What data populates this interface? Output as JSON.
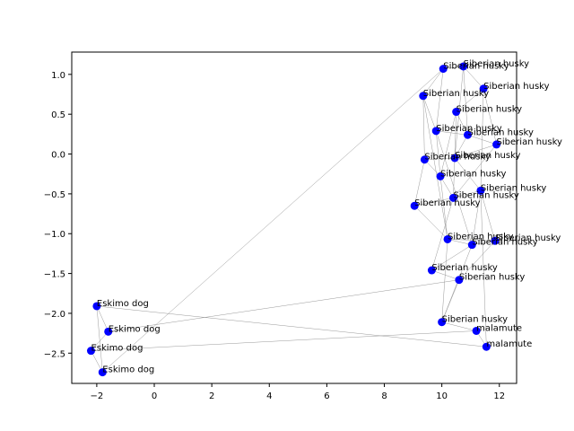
{
  "chart_data": {
    "type": "scatter",
    "title": "",
    "xlabel": "",
    "ylabel": "",
    "xlim": [
      -2.87,
      12.6
    ],
    "ylim": [
      -2.88,
      1.28
    ],
    "xticks": [
      -2,
      0,
      2,
      4,
      6,
      8,
      10,
      12
    ],
    "yticks": [
      -2.5,
      -2.0,
      -1.5,
      -1.0,
      -0.5,
      0.0,
      0.5,
      1.0
    ],
    "xtick_labels": [
      "−2",
      "0",
      "2",
      "4",
      "6",
      "8",
      "10",
      "12"
    ],
    "ytick_labels": [
      "−2.5",
      "−2.0",
      "−1.5",
      "−1.0",
      "−0.5",
      "0.0",
      "0.5",
      "1.0"
    ],
    "grid": false,
    "point_color": "#0000ff",
    "edge_color": "#999999",
    "points": [
      {
        "x": 10.75,
        "y": 1.1,
        "label": "Siberian husky"
      },
      {
        "x": 10.05,
        "y": 1.07,
        "label": "Siberian husky"
      },
      {
        "x": 11.45,
        "y": 0.82,
        "label": "Siberian husky"
      },
      {
        "x": 9.35,
        "y": 0.73,
        "label": "Siberian husky"
      },
      {
        "x": 10.5,
        "y": 0.53,
        "label": "Siberian husky"
      },
      {
        "x": 9.8,
        "y": 0.29,
        "label": "Siberian husky"
      },
      {
        "x": 10.9,
        "y": 0.24,
        "label": "Siberian husky"
      },
      {
        "x": 11.9,
        "y": 0.12,
        "label": "Siberian husky"
      },
      {
        "x": 10.45,
        "y": -0.05,
        "label": "Siberian husky"
      },
      {
        "x": 9.4,
        "y": -0.07,
        "label": "Siberian husky"
      },
      {
        "x": 9.95,
        "y": -0.28,
        "label": "Siberian husky"
      },
      {
        "x": 11.35,
        "y": -0.46,
        "label": "Siberian husky"
      },
      {
        "x": 10.4,
        "y": -0.55,
        "label": "Siberian husky"
      },
      {
        "x": 9.05,
        "y": -0.65,
        "label": "Siberian husky"
      },
      {
        "x": 10.2,
        "y": -1.07,
        "label": "Siberian husky"
      },
      {
        "x": 11.85,
        "y": -1.09,
        "label": "Siberian husky"
      },
      {
        "x": 11.05,
        "y": -1.14,
        "label": "Siberian husky"
      },
      {
        "x": 9.65,
        "y": -1.46,
        "label": "Siberian husky"
      },
      {
        "x": 10.6,
        "y": -1.58,
        "label": "Siberian husky"
      },
      {
        "x": 10.0,
        "y": -2.11,
        "label": "Siberian husky"
      },
      {
        "x": 11.2,
        "y": -2.22,
        "label": "malamute"
      },
      {
        "x": 11.55,
        "y": -2.42,
        "label": "malamute"
      },
      {
        "x": -2.0,
        "y": -1.91,
        "label": "Eskimo dog"
      },
      {
        "x": -1.6,
        "y": -2.23,
        "label": "Eskimo dog"
      },
      {
        "x": -2.2,
        "y": -2.47,
        "label": "Eskimo dog"
      },
      {
        "x": -1.8,
        "y": -2.74,
        "label": "Eskimo dog"
      }
    ],
    "edges": [
      [
        0,
        1
      ],
      [
        0,
        2
      ],
      [
        0,
        6
      ],
      [
        0,
        8
      ],
      [
        1,
        3
      ],
      [
        1,
        5
      ],
      [
        1,
        25
      ],
      [
        2,
        7
      ],
      [
        2,
        11
      ],
      [
        2,
        4
      ],
      [
        3,
        5
      ],
      [
        3,
        9
      ],
      [
        3,
        14
      ],
      [
        4,
        6
      ],
      [
        4,
        10
      ],
      [
        4,
        12
      ],
      [
        5,
        6
      ],
      [
        5,
        10
      ],
      [
        5,
        16
      ],
      [
        6,
        7
      ],
      [
        6,
        8
      ],
      [
        7,
        8
      ],
      [
        7,
        12
      ],
      [
        8,
        9
      ],
      [
        8,
        11
      ],
      [
        9,
        10
      ],
      [
        9,
        13
      ],
      [
        10,
        12
      ],
      [
        10,
        14
      ],
      [
        11,
        12
      ],
      [
        11,
        15
      ],
      [
        11,
        16
      ],
      [
        12,
        13
      ],
      [
        12,
        17
      ],
      [
        13,
        14
      ],
      [
        14,
        15
      ],
      [
        14,
        16
      ],
      [
        15,
        16
      ],
      [
        16,
        17
      ],
      [
        17,
        18
      ],
      [
        18,
        19
      ],
      [
        18,
        15
      ],
      [
        19,
        20
      ],
      [
        19,
        14
      ],
      [
        20,
        21
      ],
      [
        20,
        24
      ],
      [
        21,
        22
      ],
      [
        21,
        11
      ],
      [
        22,
        23
      ],
      [
        22,
        25
      ],
      [
        23,
        24
      ],
      [
        24,
        25
      ],
      [
        18,
        23
      ],
      [
        16,
        19
      ]
    ]
  }
}
